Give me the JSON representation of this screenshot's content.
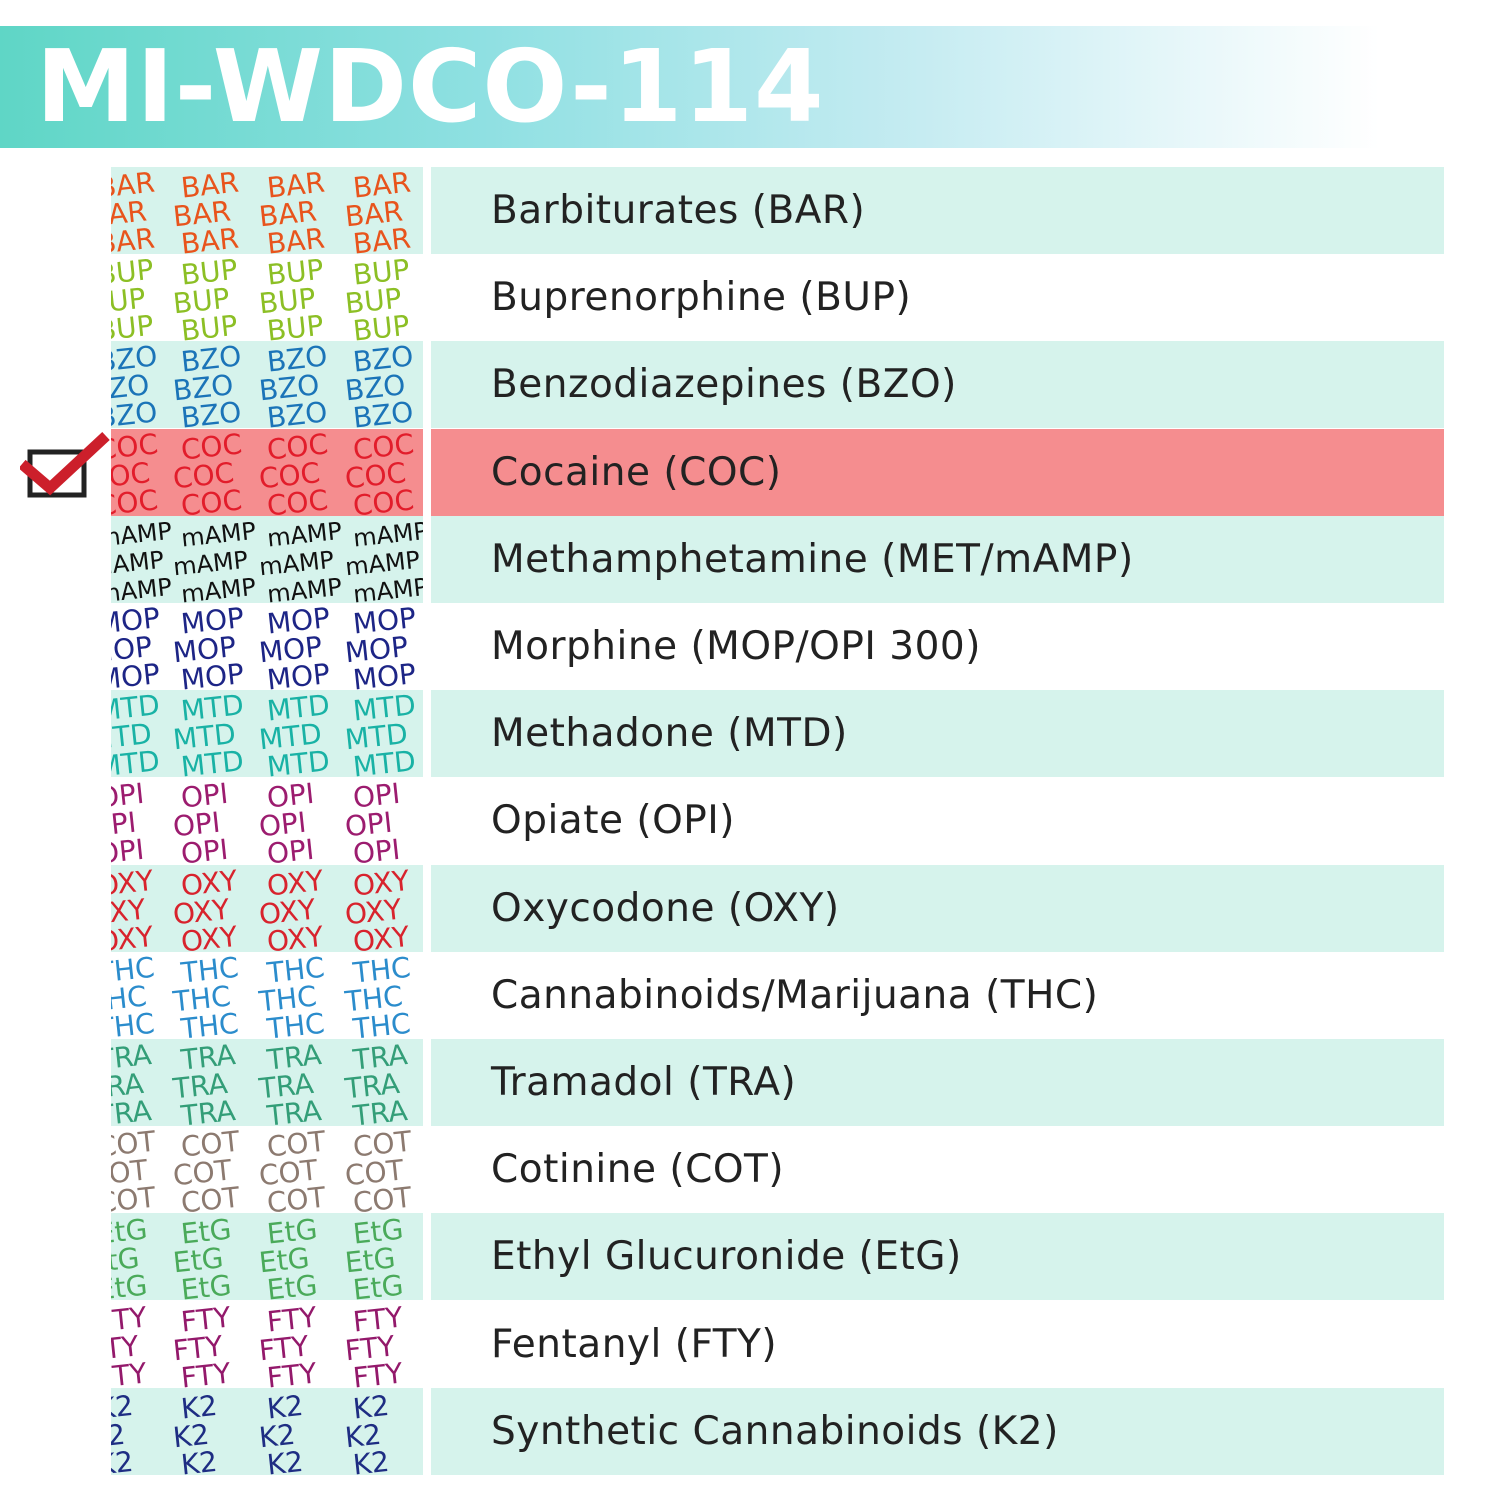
{
  "title": "MI-WDCO-114",
  "colors": {
    "shade": "#d6f3ec",
    "highlight": "#f58d8f",
    "check": "#cc1f2b",
    "box": "#222222"
  },
  "rows": [
    {
      "code": "BAR",
      "name": "Barbiturates (BAR)",
      "color": "#e8541c",
      "shade": true
    },
    {
      "code": "BUP",
      "name": "Buprenorphine (BUP)",
      "color": "#8cbf25",
      "shade": false
    },
    {
      "code": "BZO",
      "name": "Benzodiazepines (BZO)",
      "color": "#1b74b8",
      "shade": true
    },
    {
      "code": "COC",
      "name": "Cocaine (COC)",
      "color": "#e21d2b",
      "shade": true,
      "highlight": true,
      "checked": true
    },
    {
      "code": "mAMP",
      "name": "Methamphetamine (MET/mAMP)",
      "color": "#111111",
      "shade": true
    },
    {
      "code": "MOP",
      "name": "Morphine (MOP/OPI 300)",
      "color": "#1d2586",
      "shade": false
    },
    {
      "code": "MTD",
      "name": "Methadone (MTD)",
      "color": "#19b2a5",
      "shade": true
    },
    {
      "code": "OPI",
      "name": "Opiate (OPI)",
      "color": "#9c1c6f",
      "shade": false
    },
    {
      "code": "OXY",
      "name": "Oxycodone (OXY)",
      "color": "#d8232d",
      "shade": true
    },
    {
      "code": "THC",
      "name": "Cannabinoids/Marijuana (THC)",
      "color": "#2b8ccc",
      "shade": false
    },
    {
      "code": "TRA",
      "name": "Tramadol (TRA)",
      "color": "#339e78",
      "shade": true
    },
    {
      "code": "COT",
      "name": "Cotinine (COT)",
      "color": "#8c7a70",
      "shade": false
    },
    {
      "code": "EtG",
      "name": "Ethyl Glucuronide (EtG)",
      "color": "#4aaa5a",
      "shade": true
    },
    {
      "code": "FTY",
      "name": "Fentanyl (FTY)",
      "color": "#93196b",
      "shade": false
    },
    {
      "code": "K2",
      "name": "Synthetic Cannabinoids (K2)",
      "color": "#1e2d83",
      "shade": true
    }
  ]
}
